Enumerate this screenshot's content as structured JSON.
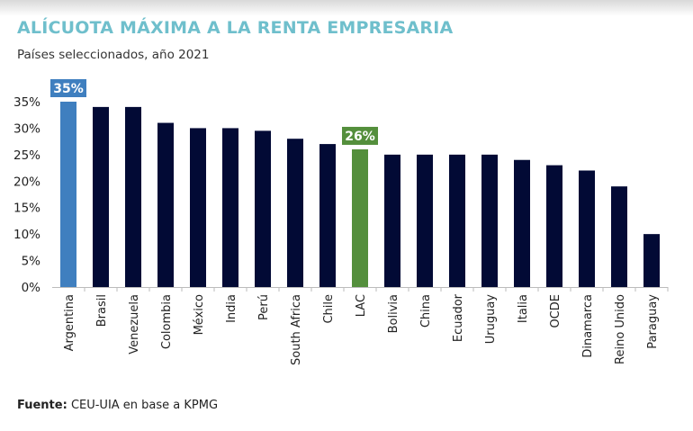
{
  "title": "ALÍCUOTA MÁXIMA A LA RENTA EMPRESARIA",
  "subtitle": "Países seleccionados, año 2021",
  "source": {
    "label": "Fuente:",
    "text": "CEU-UIA en base a KPMG"
  },
  "colors": {
    "default": "#020a35",
    "argentina": "#3f7fbf",
    "lac": "#548f3c",
    "title": "#6fbfcc"
  },
  "chart_data": {
    "type": "bar",
    "title": "ALÍCUOTA MÁXIMA A LA RENTA EMPRESARIA",
    "subtitle": "Países seleccionados, año 2021",
    "categories": [
      "Argentina",
      "Brasil",
      "Venezuela",
      "Colombia",
      "México",
      "India",
      "Perú",
      "South Africa",
      "Chile",
      "LAC",
      "Bolivia",
      "China",
      "Ecuador",
      "Uruguay",
      "Italia",
      "OCDE",
      "Dinamarca",
      "Reino Unido",
      "Paraguay"
    ],
    "values": [
      35,
      34,
      34,
      31,
      30,
      30,
      29.5,
      28,
      27,
      26,
      25,
      25,
      25,
      25,
      24,
      23,
      22,
      19,
      10
    ],
    "highlight": {
      "Argentina": "argentina",
      "LAC": "lac"
    },
    "data_labels": {
      "Argentina": "35%",
      "LAC": "26%"
    },
    "yticks": [
      "0%",
      "5%",
      "10%",
      "15%",
      "20%",
      "25%",
      "30%",
      "35%"
    ],
    "ylim": [
      0,
      35
    ],
    "xlabel": "",
    "ylabel": "",
    "grid": false,
    "legend": "none"
  }
}
